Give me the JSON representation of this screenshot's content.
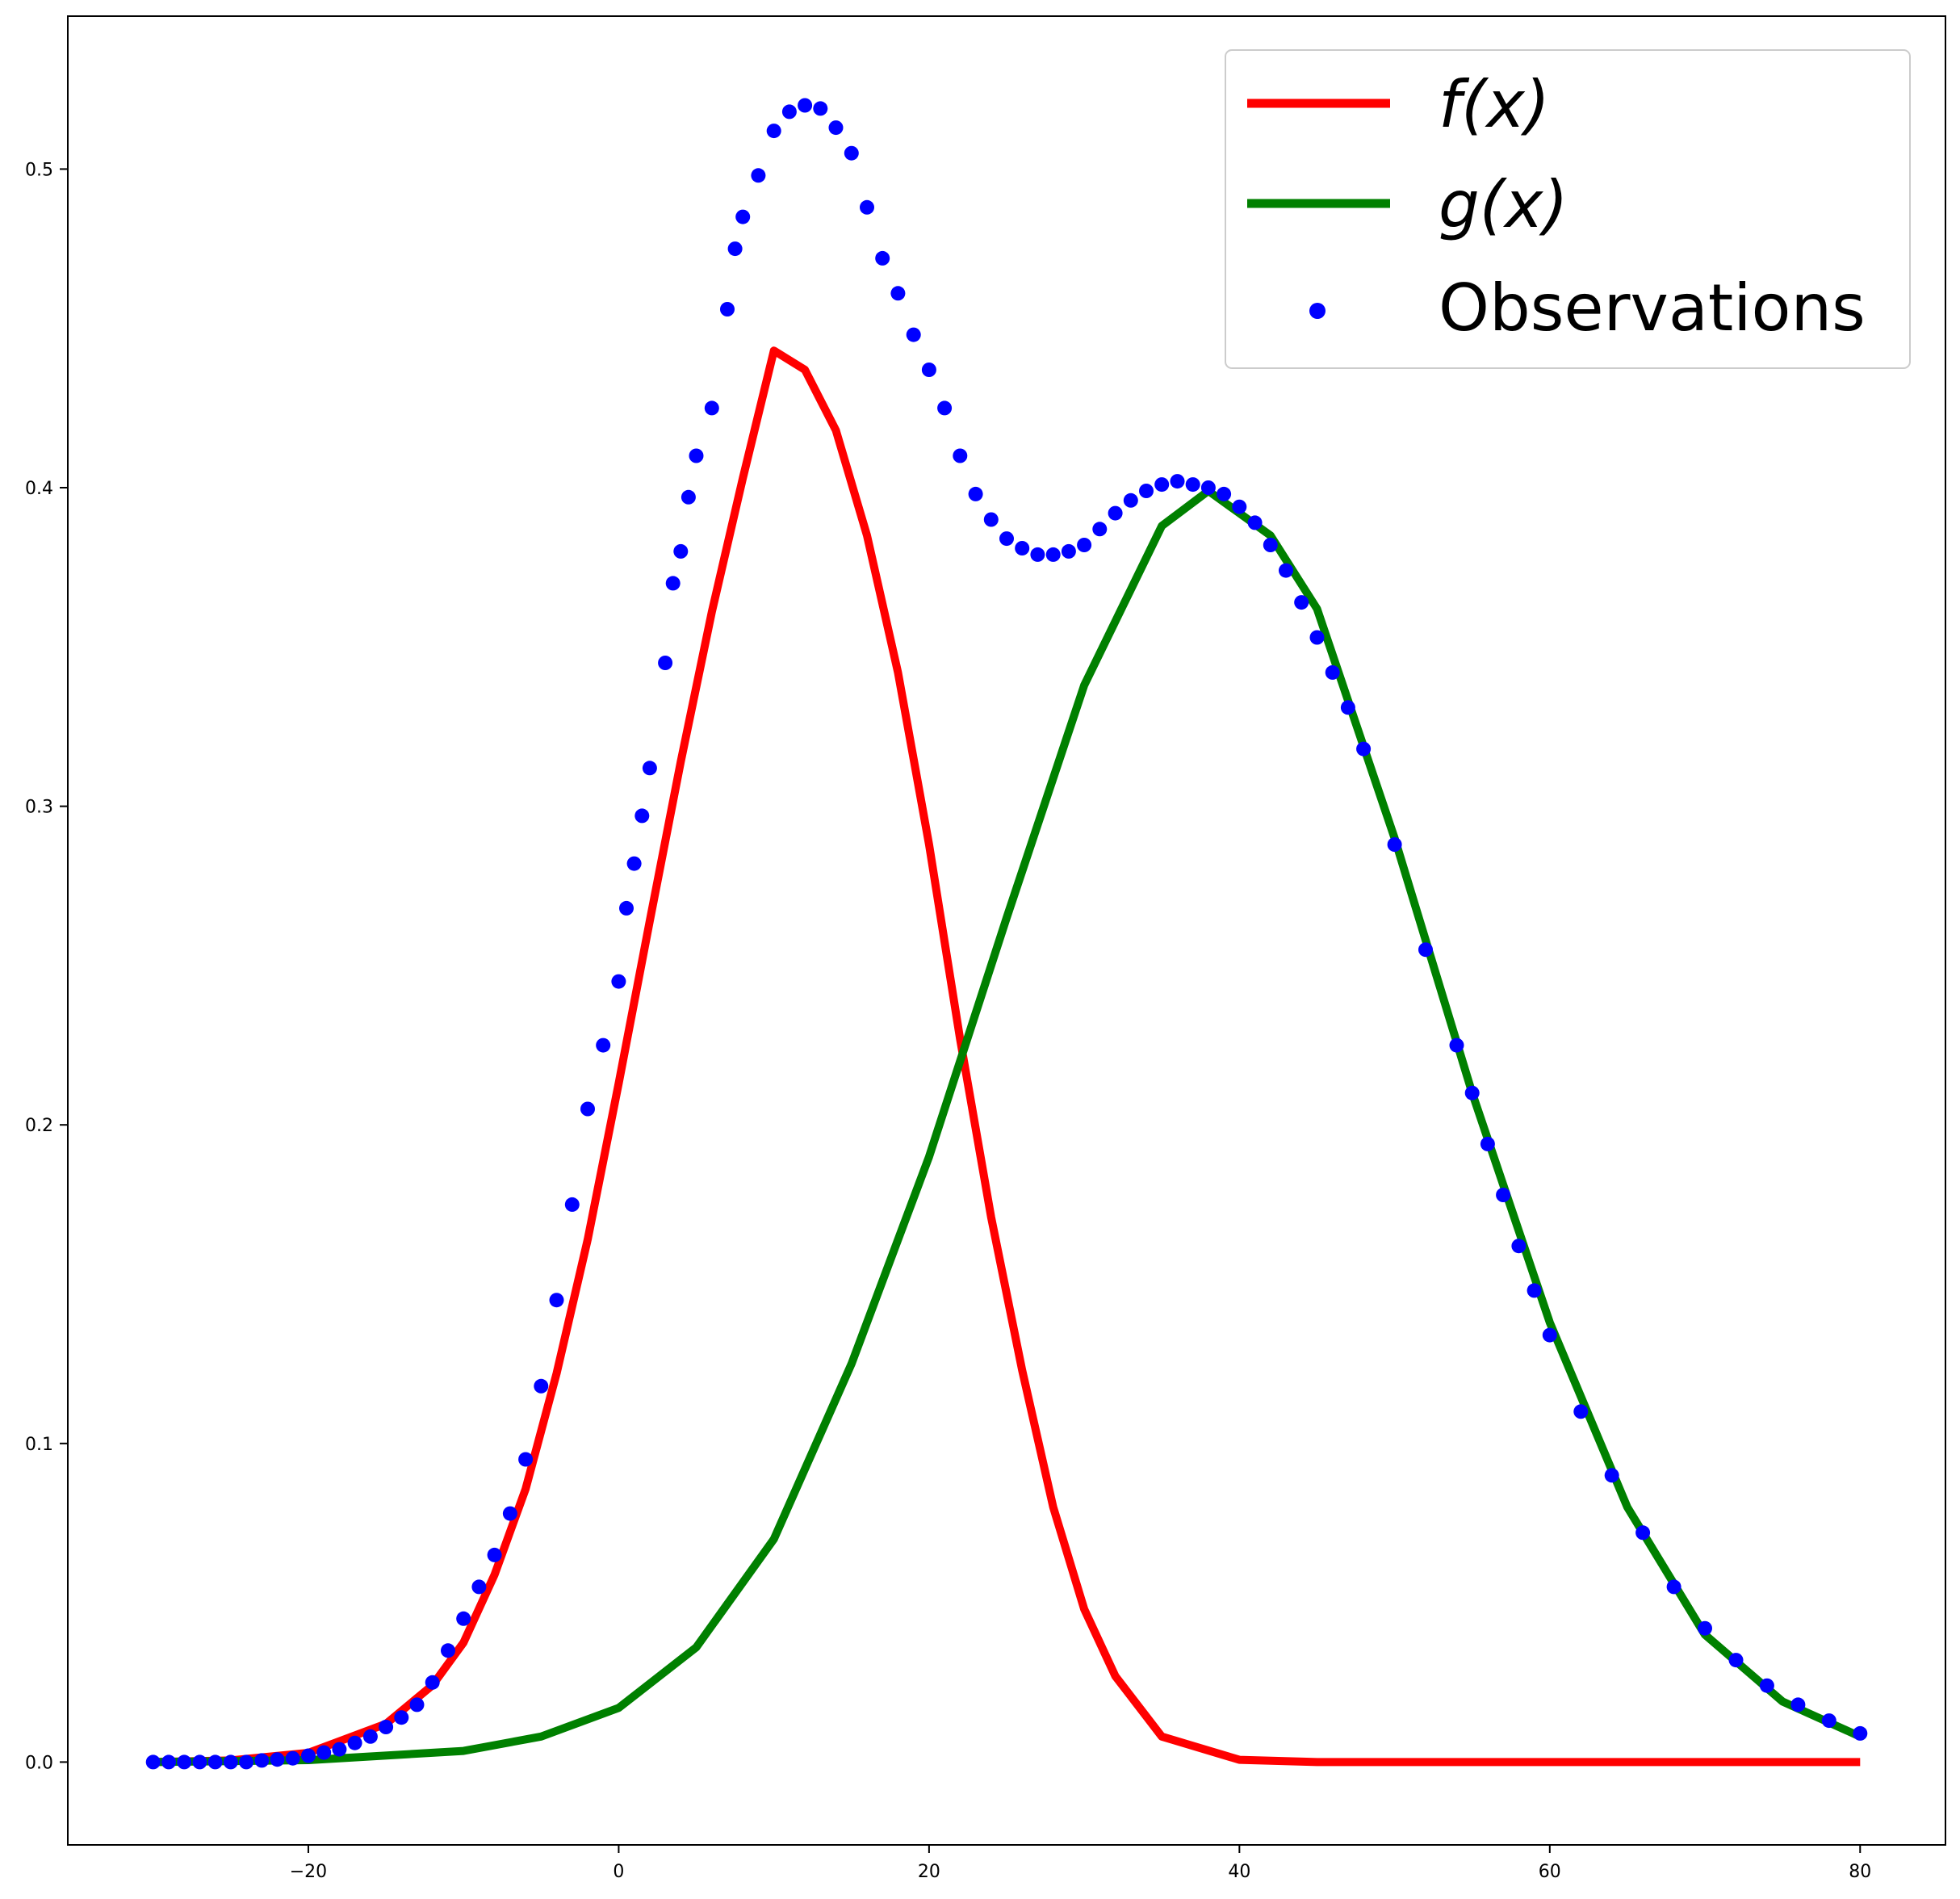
{
  "chart_data": {
    "type": "line",
    "title": "",
    "xlabel": "",
    "ylabel": "",
    "xlim": [
      -35.5,
      85.5
    ],
    "ylim": [
      -0.026,
      0.548
    ],
    "x_ticks": [
      -20,
      0,
      20,
      40,
      60,
      80
    ],
    "x_tick_labels": [
      "−20",
      "0",
      "20",
      "40",
      "60",
      "80"
    ],
    "y_ticks": [
      0.0,
      0.1,
      0.2,
      0.3,
      0.4,
      0.5
    ],
    "y_tick_labels": [
      "0.0",
      "0.1",
      "0.2",
      "0.3",
      "0.4",
      "0.5"
    ],
    "grid": false,
    "legend_position": "top-right",
    "series": [
      {
        "name": "f(x)",
        "kind": "line",
        "color": "#ff0000",
        "x": [
          -30,
          -25,
          -20,
          -15,
          -12,
          -10,
          -8,
          -6,
          -4,
          -2,
          0,
          2,
          4,
          6,
          8,
          10,
          12,
          14,
          16,
          18,
          20,
          22,
          24,
          26,
          28,
          30,
          32,
          35,
          40,
          45,
          50,
          60,
          70,
          80
        ],
        "values": [
          0.0,
          0.0005,
          0.0029,
          0.012,
          0.0241,
          0.0375,
          0.0588,
          0.0857,
          0.122,
          0.164,
          0.213,
          0.264,
          0.314,
          0.361,
          0.403,
          0.443,
          0.437,
          0.418,
          0.385,
          0.342,
          0.288,
          0.227,
          0.171,
          0.123,
          0.08,
          0.048,
          0.027,
          0.008,
          0.0007,
          0.0,
          0.0,
          0.0,
          0.0,
          0.0
        ]
      },
      {
        "name": "g(x)",
        "kind": "line",
        "color": "#008000",
        "x": [
          -30,
          -20,
          -10,
          -5,
          0,
          5,
          10,
          15,
          20,
          25,
          30,
          35,
          38,
          42,
          45,
          50,
          55,
          60,
          65,
          70,
          75,
          80
        ],
        "values": [
          0.0,
          0.0006,
          0.0035,
          0.008,
          0.017,
          0.036,
          0.07,
          0.125,
          0.19,
          0.265,
          0.338,
          0.388,
          0.399,
          0.385,
          0.362,
          0.29,
          0.21,
          0.138,
          0.08,
          0.04,
          0.019,
          0.008
        ]
      },
      {
        "name": "Observations",
        "kind": "scatter",
        "color": "#0000ff",
        "x": [
          -30,
          -29,
          -28,
          -27,
          -26,
          -25,
          -24,
          -23,
          -22,
          -21,
          -20,
          -19,
          -18,
          -17,
          -16,
          -15,
          -14,
          -13,
          -12,
          -11,
          -10,
          -9,
          -8,
          -7,
          -6,
          -5,
          -4,
          -3,
          -2,
          -1,
          0,
          0.5,
          1,
          1.5,
          2,
          3,
          3.5,
          4,
          4.5,
          5,
          6,
          7,
          7.5,
          8,
          9,
          10,
          11,
          12,
          13,
          14,
          15,
          16,
          17,
          18,
          19,
          20,
          21,
          22,
          23,
          24,
          25,
          26,
          27,
          28,
          29,
          30,
          31,
          32,
          33,
          34,
          35,
          36,
          37,
          38,
          39,
          40,
          41,
          42,
          43,
          44,
          45,
          46,
          47,
          48,
          50,
          52,
          54,
          55,
          56,
          57,
          58,
          59,
          60,
          62,
          64,
          66,
          68,
          70,
          72,
          74,
          76,
          78,
          80
        ],
        "values": [
          0.0,
          0.0,
          0.0,
          0.0,
          0.0,
          0.0,
          0.0,
          0.0005,
          0.0008,
          0.0012,
          0.002,
          0.003,
          0.004,
          0.006,
          0.008,
          0.011,
          0.014,
          0.018,
          0.025,
          0.035,
          0.045,
          0.055,
          0.065,
          0.078,
          0.095,
          0.118,
          0.145,
          0.175,
          0.205,
          0.225,
          0.245,
          0.268,
          0.282,
          0.297,
          0.312,
          0.345,
          0.37,
          0.38,
          0.397,
          0.41,
          0.425,
          0.456,
          0.475,
          0.485,
          0.498,
          0.512,
          0.518,
          0.52,
          0.519,
          0.513,
          0.505,
          0.488,
          0.472,
          0.461,
          0.448,
          0.437,
          0.425,
          0.41,
          0.398,
          0.39,
          0.384,
          0.381,
          0.379,
          0.379,
          0.38,
          0.382,
          0.387,
          0.392,
          0.396,
          0.399,
          0.401,
          0.402,
          0.401,
          0.4,
          0.398,
          0.394,
          0.389,
          0.382,
          0.374,
          0.364,
          0.353,
          0.342,
          0.331,
          0.318,
          0.288,
          0.255,
          0.225,
          0.21,
          0.194,
          0.178,
          0.162,
          0.148,
          0.134,
          0.11,
          0.09,
          0.072,
          0.055,
          0.042,
          0.032,
          0.024,
          0.018,
          0.013,
          0.009
        ]
      }
    ]
  }
}
